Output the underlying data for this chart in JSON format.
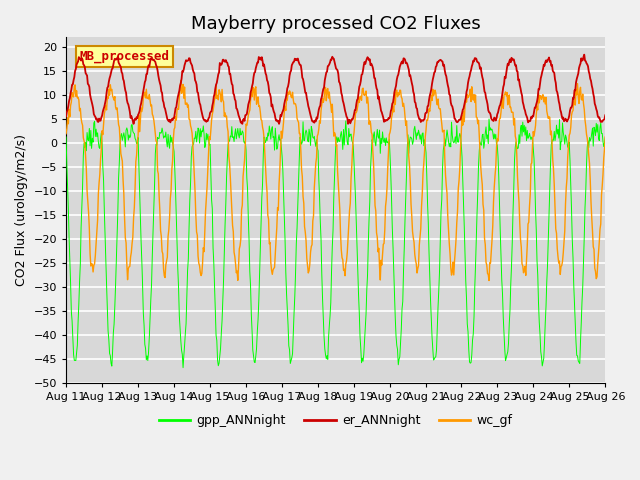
{
  "title": "Mayberry processed CO2 Fluxes",
  "ylabel": "CO2 Flux (urology/m2/s)",
  "ylim": [
    -50,
    22
  ],
  "yticks": [
    -50,
    -45,
    -40,
    -35,
    -30,
    -25,
    -20,
    -15,
    -10,
    -5,
    0,
    5,
    10,
    15,
    20
  ],
  "xlim_start": 11,
  "xlim_end": 26,
  "xtick_labels": [
    "Aug 11",
    "Aug 12",
    "Aug 13",
    "Aug 14",
    "Aug 15",
    "Aug 16",
    "Aug 17",
    "Aug 18",
    "Aug 19",
    "Aug 20",
    "Aug 21",
    "Aug 22",
    "Aug 23",
    "Aug 24",
    "Aug 25",
    "Aug 26"
  ],
  "legend_entries": [
    "gpp_ANNnight",
    "er_ANNnight",
    "wc_gf"
  ],
  "line_colors": [
    "#00ff00",
    "#cc0000",
    "#ff9900"
  ],
  "inset_label": "MB_processed",
  "inset_bg": "#ffff99",
  "inset_border": "#cc8800",
  "fig_bg": "#f0f0f0",
  "plot_bg": "#d8d8d8",
  "grid_color": "#ffffff",
  "title_fontsize": 13,
  "axis_fontsize": 9,
  "tick_fontsize": 8,
  "figwidth": 6.4,
  "figheight": 4.8,
  "dpi": 100
}
